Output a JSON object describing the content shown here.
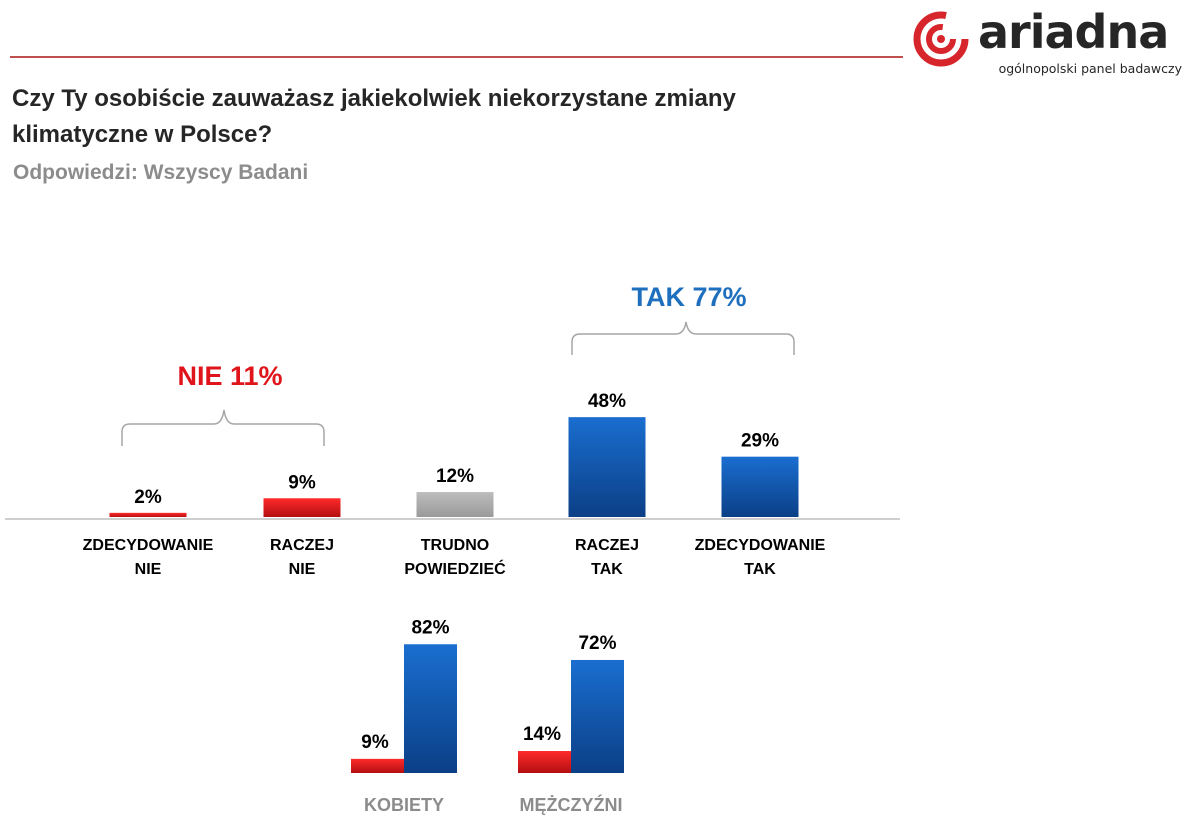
{
  "brand": {
    "name": "ariadna",
    "tagline": "ogólnopolski panel badawczy"
  },
  "question": "Czy Ty osobiście zauważasz jakiekolwiek niekorzystane zmiany klimatyczne w Polsce?",
  "subtitle": "Odpowiedzi: Wszyscy Badani",
  "groups": {
    "nie": "NIE 11%",
    "tak": "TAK 77%"
  },
  "colors": {
    "red": "#e0141b",
    "gray": "#a6a6a6",
    "blue": "#0f5eb0",
    "accent_line": "#c0504d",
    "tak_label": "#1f6fbf",
    "nie_label": "#e0141b"
  },
  "chart_data": [
    {
      "type": "bar",
      "categories": [
        [
          "ZDECYDOWANIE",
          "NIE"
        ],
        [
          "RACZEJ",
          "NIE"
        ],
        [
          "TRUDNO",
          "POWIEDZIEĆ"
        ],
        [
          "RACZEJ",
          "TAK"
        ],
        [
          "ZDECYDOWANIE",
          "TAK"
        ]
      ],
      "values": [
        2,
        9,
        12,
        48,
        29
      ],
      "data_labels": [
        "2%",
        "9%",
        "12%",
        "48%",
        "29%"
      ],
      "bar_colors": [
        "red",
        "red",
        "gray",
        "blue",
        "blue"
      ],
      "grid": false,
      "legend": "none"
    },
    {
      "type": "bar",
      "categories": [
        "KOBIETY",
        "MĘŻCZYŹNI"
      ],
      "series": [
        {
          "values": [
            9,
            14
          ],
          "data_labels": [
            "9%",
            "14%"
          ],
          "color": "red"
        },
        {
          "values": [
            82,
            72
          ],
          "data_labels": [
            "82%",
            "72%"
          ],
          "color": "blue"
        }
      ],
      "grid": false,
      "legend": "none"
    }
  ]
}
